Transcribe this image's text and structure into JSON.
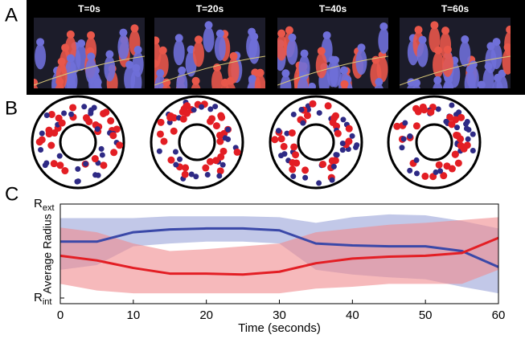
{
  "panels": {
    "A": {
      "letter": "A",
      "frames": [
        "T=0s",
        "T=20s",
        "T=40s",
        "T=60s"
      ]
    },
    "B": {
      "letter": "B"
    },
    "C": {
      "letter": "C"
    }
  },
  "chart_data": {
    "type": "line",
    "x": [
      0,
      5,
      10,
      15,
      20,
      25,
      30,
      35,
      40,
      45,
      50,
      55,
      60
    ],
    "series": [
      {
        "color": "#3a48a8",
        "band_color": "#9aa3d8",
        "values": [
          0.6,
          0.6,
          0.7,
          0.73,
          0.74,
          0.74,
          0.72,
          0.58,
          0.56,
          0.55,
          0.55,
          0.5,
          0.33
        ],
        "upper": [
          0.85,
          0.85,
          0.85,
          0.87,
          0.87,
          0.87,
          0.86,
          0.8,
          0.86,
          0.89,
          0.88,
          0.82,
          0.74
        ],
        "lower": [
          0.3,
          0.35,
          0.55,
          0.58,
          0.6,
          0.6,
          0.58,
          0.3,
          0.25,
          0.22,
          0.2,
          0.12,
          0.05
        ]
      },
      {
        "color": "#e31e24",
        "band_color": "#f08a8e",
        "values": [
          0.45,
          0.4,
          0.32,
          0.26,
          0.26,
          0.25,
          0.28,
          0.37,
          0.42,
          0.44,
          0.45,
          0.48,
          0.64
        ],
        "upper": [
          0.75,
          0.7,
          0.58,
          0.5,
          0.52,
          0.55,
          0.58,
          0.7,
          0.74,
          0.78,
          0.8,
          0.83,
          0.86
        ],
        "lower": [
          0.15,
          0.08,
          0.05,
          0.05,
          0.05,
          0.05,
          0.05,
          0.1,
          0.12,
          0.15,
          0.15,
          0.15,
          0.3
        ]
      }
    ],
    "xlim": [
      0,
      60
    ],
    "xticks": [
      0,
      10,
      20,
      30,
      40,
      50,
      60
    ],
    "ylim": [
      -0.06,
      1
    ],
    "yticks": [
      {
        "value": 1,
        "label": "R",
        "sub": "ext"
      },
      {
        "value": 0,
        "label": "R",
        "sub": "int"
      }
    ],
    "xlabel": "Time (seconds)",
    "ylabel": "Average Radius"
  }
}
